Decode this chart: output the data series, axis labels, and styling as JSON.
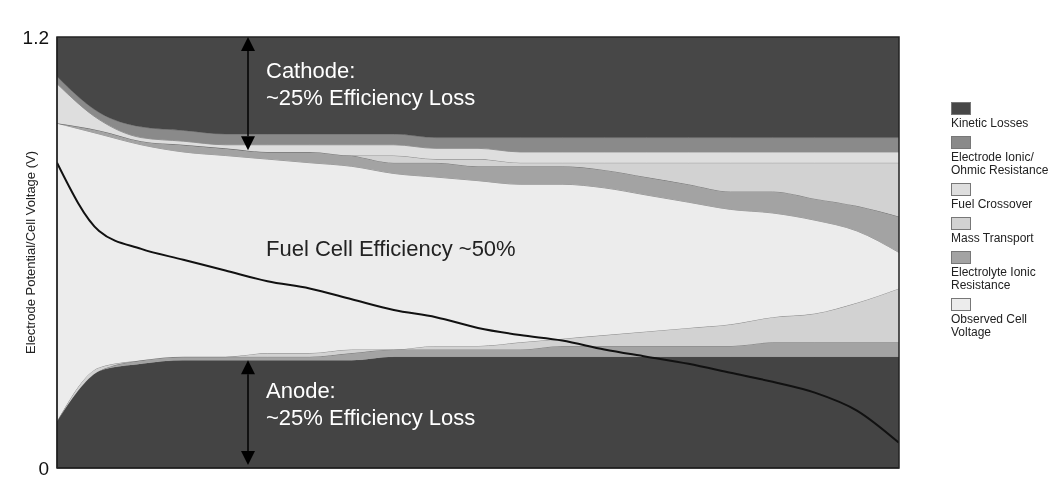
{
  "chart_data": {
    "type": "area",
    "stacked": true,
    "ylabel": "Electrode Potential/Cell Voltage (V)",
    "ylim": [
      0,
      1.2
    ],
    "yticks": [
      0,
      1.2
    ],
    "categories": [
      null,
      null,
      null,
      null,
      null,
      null,
      null,
      null,
      null,
      null,
      null,
      null,
      null,
      null,
      null,
      null,
      null,
      null,
      null,
      null,
      null
    ],
    "legend": "right",
    "grid": false,
    "annotations": [
      "Cathode:\n~25% Efficiency Loss",
      "Fuel Cell Efficiency ~50%",
      "Anode:\n~25% Efficiency Loss"
    ],
    "series": [
      {
        "color": "#444444",
        "values": [
          0.13,
          0.27,
          0.29,
          0.3,
          0.3,
          0.3,
          0.3,
          0.3,
          0.31,
          0.31,
          0.31,
          0.31,
          0.31,
          0.31,
          0.31,
          0.31,
          0.31,
          0.31,
          0.31,
          0.31,
          0.31
        ]
      },
      {
        "color": "#a3a3a3",
        "values": [
          0,
          0,
          0.01,
          0.01,
          0.01,
          0.01,
          0.01,
          0.02,
          0.02,
          0.02,
          0.02,
          0.02,
          0.03,
          0.03,
          0.03,
          0.03,
          0.03,
          0.04,
          0.04,
          0.04,
          0.04
        ]
      },
      {
        "color": "#d2d2d2",
        "values": [
          0,
          0.01,
          0,
          0,
          0,
          0.01,
          0.01,
          0.01,
          0,
          0.01,
          0.01,
          0.02,
          0.02,
          0.03,
          0.04,
          0.05,
          0.06,
          0.07,
          0.08,
          0.11,
          0.15
        ]
      },
      {
        "name": "Observed Cell Voltage",
        "color": "#ececec",
        "values": [
          0.83,
          0.65,
          0.6,
          0.57,
          0.56,
          0.54,
          0.53,
          0.51,
          0.49,
          0.47,
          0.46,
          0.44,
          0.43,
          0.41,
          0.38,
          0.35,
          0.32,
          0.29,
          0.26,
          0.2,
          0.1
        ]
      },
      {
        "name": "Electrolyte Ionic Resistance",
        "color": "#a3a3a3",
        "values": [
          0,
          0.01,
          0.01,
          0.02,
          0.02,
          0.02,
          0.03,
          0.03,
          0.03,
          0.04,
          0.04,
          0.05,
          0.05,
          0.05,
          0.05,
          0.05,
          0.05,
          0.06,
          0.06,
          0.07,
          0.1
        ]
      },
      {
        "name": "Mass Transport",
        "color": "#d2d2d2",
        "values": [
          0,
          0,
          0,
          0,
          0,
          0,
          0,
          0,
          0.02,
          0.01,
          0.02,
          0.01,
          0.01,
          0.02,
          0.04,
          0.06,
          0.08,
          0.08,
          0.1,
          0.12,
          0.15
        ]
      },
      {
        "name": "Fuel Crossover",
        "color": "#dedede",
        "values": [
          0.11,
          0.03,
          0.01,
          0.01,
          0.01,
          0.02,
          0.02,
          0.03,
          0.03,
          0.03,
          0.03,
          0.03,
          0.03,
          0.03,
          0.03,
          0.03,
          0.03,
          0.03,
          0.03,
          0.03,
          0.03
        ]
      },
      {
        "name": "Electrode Ionic/ Ohmic Resistance",
        "color": "#8a8a8a",
        "values": [
          0.02,
          0.02,
          0.03,
          0.03,
          0.03,
          0.03,
          0.03,
          0.03,
          0.03,
          0.03,
          0.03,
          0.04,
          0.04,
          0.04,
          0.04,
          0.04,
          0.04,
          0.04,
          0.04,
          0.04,
          0.04
        ]
      },
      {
        "name": "Kinetic Losses",
        "color": "#474747",
        "values": [
          0.11,
          0.21,
          0.25,
          0.26,
          0.27,
          0.27,
          0.27,
          0.27,
          0.27,
          0.28,
          0.28,
          0.28,
          0.28,
          0.28,
          0.28,
          0.28,
          0.28,
          0.28,
          0.28,
          0.28,
          0.28
        ]
      },
      {
        "type": "line",
        "color": "#111111",
        "values": [
          0.85,
          0.66,
          0.61,
          0.58,
          0.55,
          0.52,
          0.5,
          0.47,
          0.44,
          0.42,
          0.39,
          0.37,
          0.355,
          0.33,
          0.31,
          0.29,
          0.265,
          0.24,
          0.21,
          0.16,
          0.07
        ]
      }
    ]
  }
}
